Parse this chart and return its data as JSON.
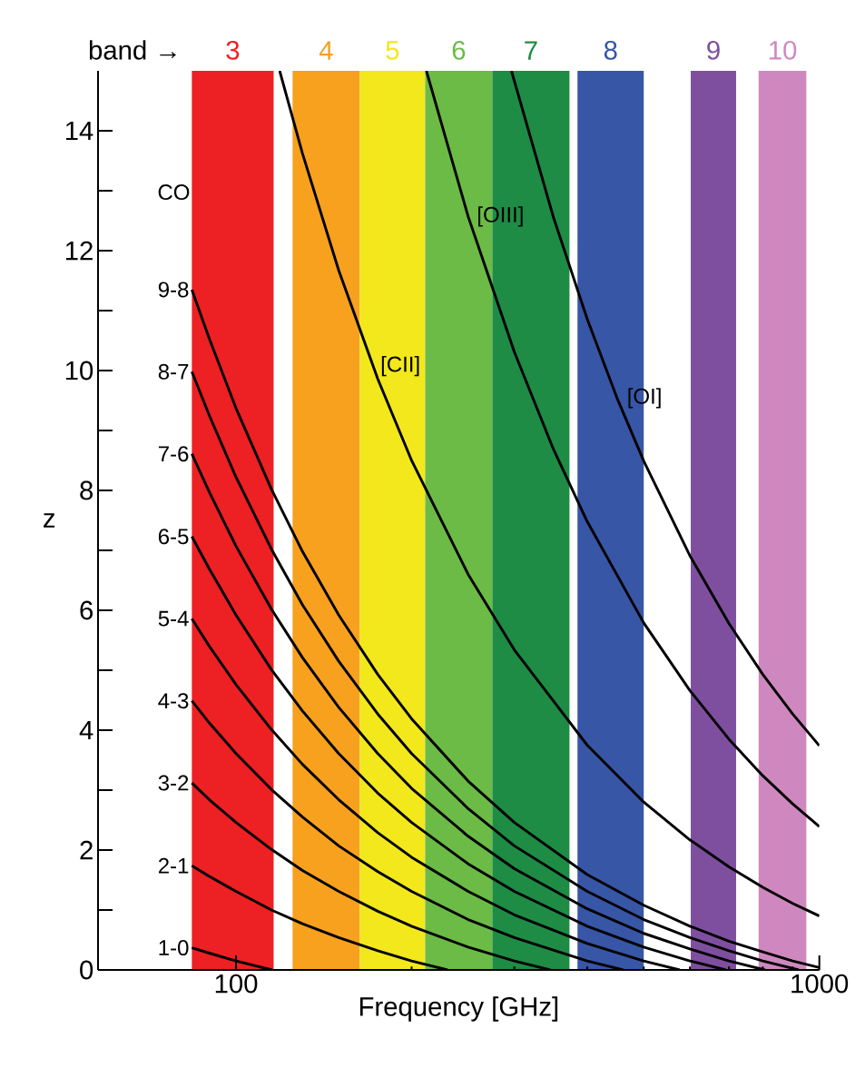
{
  "chart_data": {
    "type": "line",
    "xlabel": "Frequency [GHz]",
    "ylabel": "z",
    "log": "x",
    "xlim": [
      58,
      1000
    ],
    "ylim": [
      0,
      15
    ],
    "xticks": [
      100,
      1000
    ],
    "yticks": [
      0,
      {
        "value": 1,
        "label": null
      },
      2,
      {
        "value": 3,
        "label": null
      },
      4,
      {
        "value": 5,
        "label": null
      },
      6,
      {
        "value": 7,
        "label": null
      },
      8,
      {
        "value": 9,
        "label": null
      },
      10,
      {
        "value": 11,
        "label": null
      },
      12,
      {
        "value": 13,
        "label": null
      },
      14
    ],
    "legend": "left",
    "marker": "none",
    "line_style": "solid",
    "annotations": [
      "band →",
      "CO"
    ],
    "bands": [
      {
        "axis": "x",
        "from": 84,
        "to": 116,
        "label": "3",
        "color": "#ed2024"
      },
      {
        "axis": "x",
        "from": 125,
        "to": 163,
        "label": "4",
        "color": "#f7a11e"
      },
      {
        "axis": "x",
        "from": 163,
        "to": 211,
        "label": "5",
        "color": "#f2e81b"
      },
      {
        "axis": "x",
        "from": 211,
        "to": 275,
        "label": "6",
        "color": "#6bbb46"
      },
      {
        "axis": "x",
        "from": 275,
        "to": 373,
        "label": "7",
        "color": "#1e8c45"
      },
      {
        "axis": "x",
        "from": 385,
        "to": 500,
        "label": "8",
        "color": "#3856a6"
      },
      {
        "axis": "x",
        "from": 602,
        "to": 720,
        "label": "9",
        "color": "#7f4f9f"
      },
      {
        "axis": "x",
        "from": 787,
        "to": 950,
        "label": "10",
        "color": "#cf88bf"
      }
    ],
    "series": [
      {
        "name": "1-0",
        "color": "#000000",
        "x": [
          84,
          90,
          100,
          115.27
        ],
        "values": [
          0.37,
          0.28,
          0.15,
          0
        ]
      },
      {
        "name": "2-1",
        "color": "#000000",
        "x": [
          84,
          90,
          100,
          115,
          130,
          150,
          175,
          200,
          230.5
        ],
        "values": [
          1.74,
          1.56,
          1.31,
          1.0,
          0.77,
          0.54,
          0.32,
          0.15,
          0
        ]
      },
      {
        "name": "3-2",
        "color": "#000000",
        "x": [
          84,
          90,
          100,
          115,
          130,
          150,
          175,
          200,
          250,
          300,
          345.8
        ],
        "values": [
          3.12,
          2.84,
          2.46,
          2.01,
          1.66,
          1.31,
          0.98,
          0.73,
          0.38,
          0.15,
          0
        ]
      },
      {
        "name": "4-3",
        "color": "#000000",
        "x": [
          84,
          90,
          100,
          115,
          130,
          150,
          175,
          200,
          250,
          300,
          400,
          461.1
        ],
        "values": [
          4.49,
          4.12,
          3.61,
          3.01,
          2.55,
          2.07,
          1.64,
          1.31,
          0.84,
          0.54,
          0.15,
          0
        ]
      },
      {
        "name": "5-4",
        "color": "#000000",
        "x": [
          84,
          90,
          100,
          115,
          130,
          150,
          175,
          200,
          250,
          300,
          400,
          500,
          576.4
        ],
        "values": [
          5.86,
          5.4,
          4.76,
          4.01,
          3.43,
          2.84,
          2.29,
          1.88,
          1.31,
          0.92,
          0.44,
          0.15,
          0
        ]
      },
      {
        "name": "6-5",
        "color": "#000000",
        "x": [
          84,
          90,
          100,
          115,
          130,
          150,
          175,
          200,
          250,
          300,
          400,
          500,
          600,
          691.6
        ],
        "values": [
          7.23,
          6.69,
          5.92,
          5.01,
          4.32,
          3.61,
          2.95,
          2.46,
          1.77,
          1.31,
          0.73,
          0.38,
          0.15,
          0
        ]
      },
      {
        "name": "7-6",
        "color": "#000000",
        "x": [
          84,
          90,
          100,
          115,
          130,
          150,
          175,
          200,
          250,
          300,
          400,
          500,
          600,
          700,
          806.9
        ],
        "values": [
          8.61,
          7.97,
          7.07,
          6.02,
          5.21,
          4.38,
          3.61,
          3.03,
          2.23,
          1.69,
          1.02,
          0.61,
          0.35,
          0.15,
          0
        ]
      },
      {
        "name": "8-7",
        "color": "#000000",
        "x": [
          84,
          90,
          100,
          115,
          130,
          150,
          175,
          200,
          250,
          300,
          400,
          500,
          600,
          700,
          800,
          922.2
        ],
        "values": [
          9.98,
          9.25,
          8.22,
          7.02,
          6.09,
          5.15,
          4.27,
          3.61,
          2.69,
          2.07,
          1.31,
          0.84,
          0.54,
          0.32,
          0.15,
          0
        ]
      },
      {
        "name": "9-8",
        "color": "#000000",
        "x": [
          84,
          90,
          100,
          115,
          130,
          150,
          175,
          200,
          250,
          300,
          400,
          500,
          600,
          700,
          800,
          900,
          1000
        ],
        "values": [
          11.35,
          10.53,
          9.37,
          8.02,
          6.98,
          5.92,
          4.93,
          4.19,
          3.15,
          2.46,
          1.59,
          1.08,
          0.73,
          0.48,
          0.3,
          0.15,
          0.04
        ]
      },
      {
        "name": "[CII]",
        "color": "#000000",
        "x": [
          118.8,
          130,
          150,
          175,
          200,
          250,
          300,
          400,
          500,
          600,
          700,
          800,
          900,
          1000
        ],
        "values": [
          15,
          13.62,
          11.67,
          9.86,
          8.5,
          6.6,
          5.34,
          3.75,
          2.8,
          2.17,
          1.72,
          1.38,
          1.11,
          0.9
        ]
      },
      {
        "name": "[OIII]",
        "color": "#000000",
        "x": [
          212,
          250,
          300,
          350,
          400,
          500,
          600,
          700,
          800,
          900,
          1000
        ],
        "values": [
          15,
          12.57,
          10.31,
          8.69,
          7.48,
          5.79,
          4.66,
          3.85,
          3.24,
          2.77,
          2.39
        ]
      },
      {
        "name": "[OI]",
        "color": "#000000",
        "x": [
          296.6,
          350,
          400,
          450,
          500,
          600,
          700,
          800,
          900,
          1000
        ],
        "values": [
          15,
          12.56,
          10.86,
          9.54,
          8.49,
          6.91,
          5.78,
          4.93,
          4.27,
          3.74
        ]
      }
    ]
  }
}
